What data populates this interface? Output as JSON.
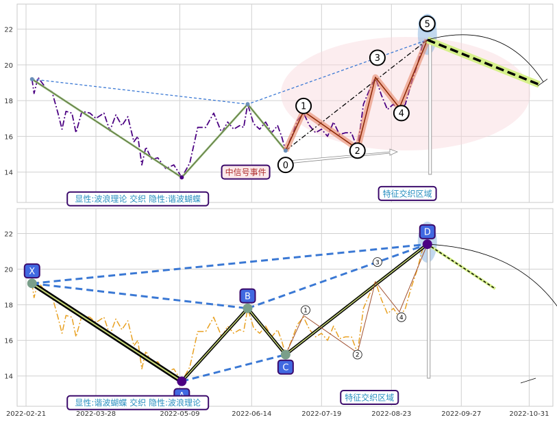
{
  "chart_data": [
    {
      "type": "line",
      "x_ticks": [],
      "y_ticks": [
        "14",
        "16",
        "18",
        "20",
        "22"
      ],
      "ylim": [
        12.3,
        23.4
      ],
      "grid": true,
      "series": [
        {
          "role": "price",
          "style": "dash-dot",
          "color": "#4b0082",
          "points": [
            [
              "2022-02-24",
              19.2
            ],
            [
              "2022-02-25",
              18.4
            ],
            [
              "2022-02-27",
              19.3
            ],
            [
              "2022-03-01",
              19.0
            ],
            [
              "2022-03-03",
              18.7
            ],
            [
              "2022-03-06",
              18.5
            ],
            [
              "2022-03-09",
              17.3
            ],
            [
              "2022-03-11",
              16.4
            ],
            [
              "2022-03-13",
              17.4
            ],
            [
              "2022-03-16",
              17.3
            ],
            [
              "2022-03-18",
              16.2
            ],
            [
              "2022-03-21",
              17.4
            ],
            [
              "2022-03-25",
              17.3
            ],
            [
              "2022-03-28",
              17.0
            ],
            [
              "2022-04-01",
              17.3
            ],
            [
              "2022-04-04",
              16.3
            ],
            [
              "2022-04-07",
              17.2
            ],
            [
              "2022-04-10",
              16.6
            ],
            [
              "2022-04-13",
              17.1
            ],
            [
              "2022-04-16",
              15.7
            ],
            [
              "2022-04-18",
              16.0
            ],
            [
              "2022-04-20",
              14.4
            ],
            [
              "2022-04-22",
              15.4
            ],
            [
              "2022-04-25",
              14.7
            ],
            [
              "2022-04-28",
              14.8
            ],
            [
              "2022-05-02",
              14.2
            ],
            [
              "2022-05-06",
              14.4
            ],
            [
              "2022-05-10",
              13.7
            ],
            [
              "2022-05-14",
              14.5
            ],
            [
              "2022-05-18",
              16.5
            ],
            [
              "2022-05-22",
              16.5
            ],
            [
              "2022-05-26",
              17.3
            ],
            [
              "2022-05-30",
              16.2
            ],
            [
              "2022-06-02",
              16.8
            ],
            [
              "2022-06-05",
              16.4
            ],
            [
              "2022-06-08",
              16.6
            ],
            [
              "2022-06-10",
              16.5
            ],
            [
              "2022-06-12",
              17.8
            ],
            [
              "2022-06-15",
              16.7
            ],
            [
              "2022-06-18",
              16.4
            ],
            [
              "2022-06-21",
              16.8
            ],
            [
              "2022-06-24",
              16.2
            ],
            [
              "2022-06-27",
              16.6
            ],
            [
              "2022-06-29",
              16.0
            ],
            [
              "2022-07-01",
              15.2
            ],
            [
              "2022-07-04",
              16.0
            ],
            [
              "2022-07-07",
              16.9
            ],
            [
              "2022-07-10",
              17.3
            ],
            [
              "2022-07-13",
              16.6
            ],
            [
              "2022-07-16",
              16.2
            ],
            [
              "2022-07-19",
              16.4
            ],
            [
              "2022-07-22",
              16.0
            ],
            [
              "2022-07-25",
              16.8
            ],
            [
              "2022-07-28",
              16.1
            ],
            [
              "2022-07-31",
              16.2
            ],
            [
              "2022-08-03",
              16.2
            ],
            [
              "2022-08-06",
              15.3
            ],
            [
              "2022-08-09",
              17.8
            ],
            [
              "2022-08-12",
              18.6
            ],
            [
              "2022-08-15",
              19.3
            ],
            [
              "2022-08-18",
              18.3
            ],
            [
              "2022-08-21",
              17.5
            ],
            [
              "2022-08-24",
              17.8
            ],
            [
              "2022-08-27",
              17.3
            ],
            [
              "2022-08-30",
              17.8
            ],
            [
              "2022-09-02",
              19.0
            ],
            [
              "2022-09-05",
              20.0
            ],
            [
              "2022-09-08",
              21.3
            ],
            [
              "2022-09-10",
              21.4
            ]
          ]
        }
      ],
      "structure_lines": [
        {
          "style": "dashed",
          "color": "#3a78d4",
          "points": [
            [
              "2022-02-24",
              19.2
            ],
            [
              "2022-06-12",
              17.8
            ],
            [
              "2022-09-10",
              21.4
            ]
          ]
        },
        {
          "style": "solid-olive",
          "color": "#556b2f",
          "points": [
            [
              "2022-02-24",
              19.2
            ],
            [
              "2022-05-10",
              13.7
            ],
            [
              "2022-06-12",
              17.8
            ],
            [
              "2022-07-01",
              15.2
            ]
          ]
        },
        {
          "style": "dash-dot",
          "color": "#000000",
          "points": [
            [
              "2022-07-01",
              15.2
            ],
            [
              "2022-09-10",
              21.4
            ]
          ]
        },
        {
          "style": "highlight-wave",
          "color": "#e8896b",
          "points": [
            [
              "2022-07-01",
              15.2
            ],
            [
              "2022-07-10",
              17.4
            ],
            [
              "2022-08-06",
              15.3
            ],
            [
              "2022-08-15",
              19.3
            ],
            [
              "2022-08-27",
              17.6
            ],
            [
              "2022-09-10",
              21.4
            ]
          ]
        },
        {
          "style": "projection-dashed",
          "color": "#000000",
          "points": [
            [
              "2022-09-10",
              21.4
            ],
            [
              "2022-11-05",
              18.9
            ]
          ]
        }
      ],
      "wave_labels": [
        {
          "text": "0",
          "x": "2022-07-01",
          "y": 14.4
        },
        {
          "text": "1",
          "x": "2022-07-10",
          "y": 17.7
        },
        {
          "text": "2",
          "x": "2022-08-06",
          "y": 15.2
        },
        {
          "text": "3",
          "x": "2022-08-16",
          "y": 20.4
        },
        {
          "text": "4",
          "x": "2022-08-28",
          "y": 17.3
        },
        {
          "text": "5",
          "x": "2022-09-10",
          "y": 22.3
        }
      ],
      "annotations": [
        {
          "text": "中信号事件",
          "x": "2022-06-11",
          "y": 14.0,
          "role": "event",
          "color": "#b03030"
        },
        {
          "text": "特征交织区域",
          "x": "2022-08-31",
          "y": 12.8,
          "role": "zone",
          "color": "#2a90c0"
        },
        {
          "text": "显性:波浪理论 交织 隐性:谐波蝴蝶",
          "x": "2022-04-18",
          "y": 12.5,
          "role": "legend",
          "color": "#2a90c0"
        }
      ]
    },
    {
      "type": "line",
      "x_ticks": [
        "2022-02-21",
        "2022-03-28",
        "2022-05-09",
        "2022-06-14",
        "2022-07-19",
        "2022-08-23",
        "2022-09-27",
        "2022-10-31"
      ],
      "y_ticks": [
        "14",
        "16",
        "18",
        "20",
        "22"
      ],
      "ylim": [
        12.3,
        23.4
      ],
      "grid": true,
      "series": [
        {
          "role": "price",
          "style": "dash-dot",
          "color": "#e8a020",
          "points": [
            [
              "2022-02-24",
              19.2
            ],
            [
              "2022-02-25",
              18.4
            ],
            [
              "2022-02-27",
              19.3
            ],
            [
              "2022-03-01",
              19.0
            ],
            [
              "2022-03-03",
              18.7
            ],
            [
              "2022-03-06",
              18.5
            ],
            [
              "2022-03-09",
              17.3
            ],
            [
              "2022-03-11",
              16.4
            ],
            [
              "2022-03-13",
              17.4
            ],
            [
              "2022-03-16",
              17.3
            ],
            [
              "2022-03-18",
              16.2
            ],
            [
              "2022-03-21",
              17.4
            ],
            [
              "2022-03-25",
              17.3
            ],
            [
              "2022-03-28",
              17.0
            ],
            [
              "2022-04-01",
              17.3
            ],
            [
              "2022-04-04",
              16.3
            ],
            [
              "2022-04-07",
              17.2
            ],
            [
              "2022-04-10",
              16.6
            ],
            [
              "2022-04-13",
              17.1
            ],
            [
              "2022-04-16",
              15.7
            ],
            [
              "2022-04-18",
              16.0
            ],
            [
              "2022-04-20",
              14.4
            ],
            [
              "2022-04-22",
              15.4
            ],
            [
              "2022-04-25",
              14.7
            ],
            [
              "2022-04-28",
              14.8
            ],
            [
              "2022-05-02",
              14.2
            ],
            [
              "2022-05-06",
              14.4
            ],
            [
              "2022-05-10",
              13.7
            ],
            [
              "2022-05-14",
              14.5
            ],
            [
              "2022-05-18",
              16.5
            ],
            [
              "2022-05-22",
              16.5
            ],
            [
              "2022-05-26",
              17.3
            ],
            [
              "2022-05-30",
              16.2
            ],
            [
              "2022-06-02",
              16.8
            ],
            [
              "2022-06-05",
              16.4
            ],
            [
              "2022-06-08",
              16.6
            ],
            [
              "2022-06-10",
              16.5
            ],
            [
              "2022-06-12",
              17.8
            ],
            [
              "2022-06-15",
              16.7
            ],
            [
              "2022-06-18",
              16.4
            ],
            [
              "2022-06-21",
              16.8
            ],
            [
              "2022-06-24",
              16.2
            ],
            [
              "2022-06-27",
              16.6
            ],
            [
              "2022-06-29",
              16.0
            ],
            [
              "2022-07-01",
              15.2
            ],
            [
              "2022-07-04",
              16.0
            ],
            [
              "2022-07-07",
              16.9
            ],
            [
              "2022-07-10",
              17.3
            ],
            [
              "2022-07-13",
              16.6
            ],
            [
              "2022-07-16",
              16.2
            ],
            [
              "2022-07-19",
              16.4
            ],
            [
              "2022-07-22",
              16.0
            ],
            [
              "2022-07-25",
              16.8
            ],
            [
              "2022-07-28",
              16.1
            ],
            [
              "2022-07-31",
              16.2
            ],
            [
              "2022-08-03",
              16.2
            ],
            [
              "2022-08-06",
              15.3
            ],
            [
              "2022-08-09",
              17.8
            ],
            [
              "2022-08-12",
              18.6
            ],
            [
              "2022-08-15",
              19.3
            ],
            [
              "2022-08-18",
              18.3
            ],
            [
              "2022-08-21",
              17.5
            ],
            [
              "2022-08-24",
              17.8
            ],
            [
              "2022-08-27",
              17.3
            ],
            [
              "2022-08-30",
              17.8
            ],
            [
              "2022-09-02",
              19.0
            ],
            [
              "2022-09-05",
              20.0
            ],
            [
              "2022-09-08",
              21.3
            ],
            [
              "2022-09-10",
              21.4
            ]
          ]
        }
      ],
      "structure_lines": [
        {
          "style": "thick-black",
          "color": "#000000",
          "points": [
            [
              "2022-02-24",
              19.2
            ],
            [
              "2022-05-10",
              13.7
            ]
          ]
        },
        {
          "style": "olive",
          "color": "#556b2f",
          "points": [
            [
              "2022-05-10",
              13.7
            ],
            [
              "2022-06-12",
              17.8
            ],
            [
              "2022-07-01",
              15.2
            ],
            [
              "2022-09-10",
              21.4
            ]
          ]
        },
        {
          "style": "blue-dashed",
          "color": "#3a78d4",
          "points": [
            [
              "2022-02-24",
              19.2
            ],
            [
              "2022-06-12",
              17.8
            ]
          ]
        },
        {
          "style": "blue-dashed",
          "color": "#3a78d4",
          "points": [
            [
              "2022-02-24",
              19.2
            ],
            [
              "2022-09-10",
              21.4
            ]
          ]
        },
        {
          "style": "blue-dashed",
          "color": "#3a78d4",
          "points": [
            [
              "2022-05-10",
              13.7
            ],
            [
              "2022-07-01",
              15.2
            ]
          ]
        },
        {
          "style": "blue-dashed",
          "color": "#3a78d4",
          "points": [
            [
              "2022-06-12",
              17.8
            ],
            [
              "2022-09-10",
              21.4
            ]
          ]
        },
        {
          "style": "wave-thin",
          "color": "#a05030",
          "points": [
            [
              "2022-07-01",
              15.2
            ],
            [
              "2022-07-10",
              17.4
            ],
            [
              "2022-08-06",
              15.3
            ],
            [
              "2022-08-15",
              19.3
            ],
            [
              "2022-08-27",
              17.6
            ],
            [
              "2022-09-10",
              21.4
            ]
          ]
        },
        {
          "style": "projection-dashed",
          "color": "#000000",
          "points": [
            [
              "2022-09-10",
              21.4
            ],
            [
              "2022-10-14",
              18.9
            ]
          ]
        }
      ],
      "point_labels": [
        {
          "text": "X",
          "x": "2022-02-24",
          "y": 19.9
        },
        {
          "text": "A",
          "x": "2022-05-10",
          "y": 12.9
        },
        {
          "text": "B",
          "x": "2022-06-12",
          "y": 18.5
        },
        {
          "text": "C",
          "x": "2022-07-01",
          "y": 14.5
        },
        {
          "text": "D",
          "x": "2022-09-10",
          "y": 22.1
        }
      ],
      "wave_labels": [
        {
          "text": "1",
          "x": "2022-07-11",
          "y": 17.7
        },
        {
          "text": "2",
          "x": "2022-08-06",
          "y": 15.2
        },
        {
          "text": "3",
          "x": "2022-08-16",
          "y": 20.4
        },
        {
          "text": "4",
          "x": "2022-08-28",
          "y": 17.3
        }
      ],
      "annotations": [
        {
          "text": "特征交织区域",
          "x": "2022-08-12",
          "y": 12.8,
          "role": "zone",
          "color": "#2a90c0"
        },
        {
          "text": "显性:谐波蝴蝶 交织 隐性:波浪理论",
          "x": "2022-04-18",
          "y": 12.5,
          "role": "legend",
          "color": "#2a90c0"
        }
      ]
    }
  ]
}
